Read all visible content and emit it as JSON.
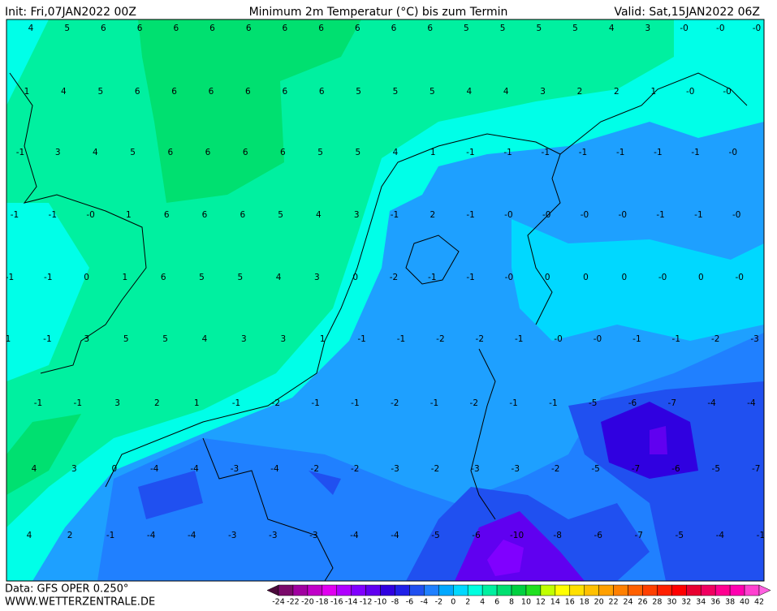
{
  "header": {
    "init": "Init: Fri,07JAN2022 00Z",
    "title": "Minimum 2m Temperatur (°C) bis zum Termin",
    "valid": "Valid: Sat,15JAN2022 06Z"
  },
  "map": {
    "rows": [
      [
        "4",
        "5",
        "6",
        "6",
        "6",
        "6",
        "6",
        "6",
        "6",
        "6",
        "6",
        "6",
        "5",
        "5",
        "5",
        "5",
        "4",
        "3",
        "-0",
        "-0",
        "-0"
      ],
      [
        "1",
        "4",
        "5",
        "6",
        "6",
        "6",
        "6",
        "6",
        "6",
        "5",
        "5",
        "5",
        "4",
        "4",
        "3",
        "2",
        "2",
        "1",
        "-0",
        "-0"
      ],
      [
        "-1",
        "3",
        "4",
        "5",
        "6",
        "6",
        "6",
        "6",
        "5",
        "5",
        "4",
        "1",
        "-1",
        "-1",
        "-1",
        "-1",
        "-1",
        "-1",
        "-1",
        "-0"
      ],
      [
        "-1",
        "-1",
        "-0",
        "1",
        "6",
        "6",
        "6",
        "5",
        "4",
        "3",
        "-1",
        "2",
        "-1",
        "-0",
        "-0",
        "-0",
        "-0",
        "-1",
        "-1",
        "-0"
      ],
      [
        "-1",
        "-1",
        "0",
        "1",
        "6",
        "5",
        "5",
        "4",
        "3",
        "0",
        "-2",
        "-1",
        "-1",
        "-0",
        "0",
        "0",
        "0",
        "-0",
        "0",
        "-0"
      ],
      [
        "1",
        "-1",
        "3",
        "5",
        "5",
        "4",
        "3",
        "3",
        "1",
        "-1",
        "-1",
        "-2",
        "-2",
        "-1",
        "-0",
        "-0",
        "-1",
        "-1",
        "-2",
        "-3"
      ],
      [
        "-1",
        "-1",
        "3",
        "2",
        "1",
        "-1",
        "-2",
        "-1",
        "-1",
        "-2",
        "-1",
        "-2",
        "-1",
        "-1",
        "-5",
        "-6",
        "-7",
        "-4",
        "-4"
      ],
      [
        "4",
        "3",
        "0",
        "-4",
        "-4",
        "-3",
        "-4",
        "-2",
        "-2",
        "-3",
        "-2",
        "-3",
        "-3",
        "-2",
        "-5",
        "-7",
        "-6",
        "-5",
        "-7"
      ],
      [
        "4",
        "2",
        "-1",
        "-4",
        "-4",
        "-3",
        "-3",
        "-3",
        "-4",
        "-4",
        "-5",
        "-6",
        "-10",
        "-8",
        "-6",
        "-7",
        "-5",
        "-4",
        "-1"
      ]
    ]
  },
  "legend": {
    "ticks": [
      -24,
      -22,
      -20,
      -18,
      -16,
      -14,
      -12,
      -10,
      -8,
      -6,
      -4,
      -2,
      0,
      2,
      4,
      6,
      8,
      10,
      12,
      14,
      16,
      18,
      20,
      22,
      24,
      26,
      28,
      30,
      32,
      34,
      36,
      38,
      40,
      42
    ],
    "colors": [
      "#4a0a3a",
      "#7a0a6a",
      "#a000a0",
      "#c000c8",
      "#e000f0",
      "#b000ff",
      "#8000ff",
      "#6000f0",
      "#3000e0",
      "#2020e8",
      "#2050f0",
      "#2080ff",
      "#00a8ff",
      "#00d8ff",
      "#00ffe0",
      "#00f0a0",
      "#00e070",
      "#00d040",
      "#20e020",
      "#c0ff00",
      "#ffff00",
      "#ffe000",
      "#ffc000",
      "#ffa000",
      "#ff8000",
      "#ff6000",
      "#ff4000",
      "#ff2000",
      "#ff0000",
      "#e80030",
      "#f00060",
      "#ff0090",
      "#ff00b0",
      "#ff40d0",
      "#ff60e0"
    ]
  },
  "footer": {
    "data": "Data: GFS OPER 0.250°",
    "site": "WWW.WETTERZENTRALE.DE"
  }
}
